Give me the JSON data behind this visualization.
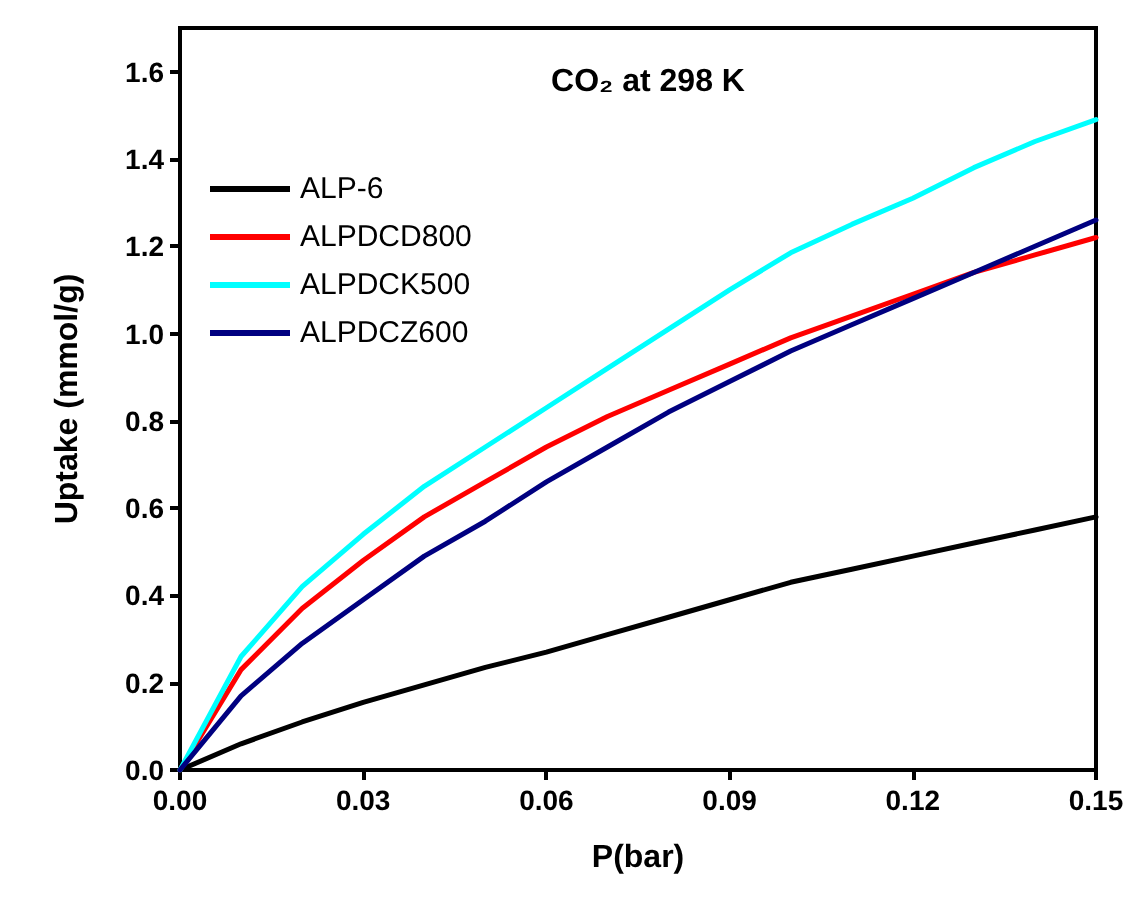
{
  "chart_data": {
    "type": "line",
    "title": "CO₂ at 298 K",
    "xlabel": "P(bar)",
    "ylabel": "Uptake (mmol/g)",
    "x": [
      0,
      0.01,
      0.02,
      0.03,
      0.04,
      0.05,
      0.06,
      0.07,
      0.08,
      0.09,
      0.1,
      0.11,
      0.12,
      0.13,
      0.14,
      0.15
    ],
    "series": [
      {
        "name": "ALP-6",
        "color": "#000000",
        "values": [
          0,
          0.06,
          0.11,
          0.155,
          0.195,
          0.235,
          0.27,
          0.31,
          0.35,
          0.39,
          0.43,
          0.46,
          0.49,
          0.52,
          0.55,
          0.58
        ]
      },
      {
        "name": "ALPDCD800",
        "color": "#ff0000",
        "values": [
          0,
          0.23,
          0.37,
          0.48,
          0.58,
          0.66,
          0.74,
          0.81,
          0.87,
          0.93,
          0.99,
          1.04,
          1.09,
          1.14,
          1.18,
          1.22
        ]
      },
      {
        "name": "ALPDCK500",
        "color": "#00ffff",
        "values": [
          0,
          0.26,
          0.42,
          0.54,
          0.65,
          0.74,
          0.83,
          0.92,
          1.01,
          1.1,
          1.185,
          1.25,
          1.31,
          1.38,
          1.44,
          1.49
        ]
      },
      {
        "name": "ALPDCZ600",
        "color": "#000080",
        "values": [
          0,
          0.17,
          0.29,
          0.39,
          0.49,
          0.57,
          0.66,
          0.74,
          0.82,
          0.89,
          0.96,
          1.02,
          1.08,
          1.14,
          1.2,
          1.26
        ]
      }
    ],
    "xlim": [
      0,
      0.15
    ],
    "xticks": [
      {
        "value": 0,
        "label": "0.00"
      },
      {
        "value": 0.03,
        "label": "0.03"
      },
      {
        "value": 0.06,
        "label": "0.06"
      },
      {
        "value": 0.09,
        "label": "0.09"
      },
      {
        "value": 0.12,
        "label": "0.12"
      },
      {
        "value": 0.15,
        "label": "0.15"
      }
    ],
    "ylim": [
      0,
      1.7
    ],
    "yticks": [
      {
        "value": 0,
        "label": "0.0"
      },
      {
        "value": 0.2,
        "label": "0.2"
      },
      {
        "value": 0.4,
        "label": "0.4"
      },
      {
        "value": 0.6,
        "label": "0.6"
      },
      {
        "value": 0.8,
        "label": "0.8"
      },
      {
        "value": 1.0,
        "label": "1.0"
      },
      {
        "value": 1.2,
        "label": "1.2"
      },
      {
        "value": 1.4,
        "label": "1.4"
      },
      {
        "value": 1.6,
        "label": "1.6"
      }
    ],
    "legend": "top left",
    "grid": false,
    "marker": "none",
    "line_style": "solid"
  }
}
